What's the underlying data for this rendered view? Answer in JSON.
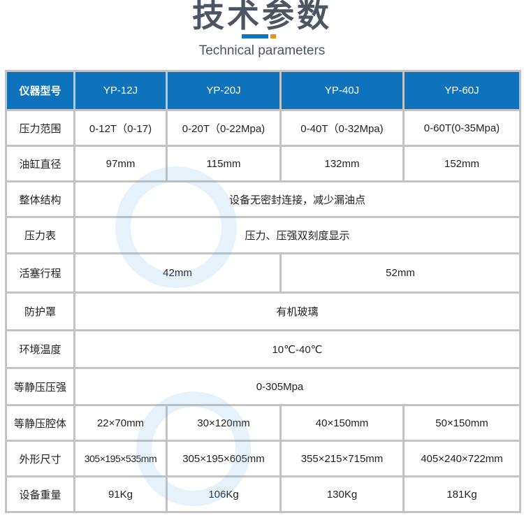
{
  "header": {
    "title": "技术参数",
    "subtitle": "Technical parameters",
    "accent_colors": {
      "blue": "#1272bd",
      "orange": "#f08a24"
    }
  },
  "table": {
    "header_color": "#0f72bd",
    "columns": [
      "仪器型号",
      "YP-12J",
      "YP-20J",
      "YP-40J",
      "YP-60J"
    ],
    "rows": {
      "pressure_range": {
        "label": "压力范围",
        "values": [
          "0-12T（0-17)",
          "0-20T（0-22Mpa)",
          "0-40T（0-32Mpa)",
          "0-60T(0-35Mpa)"
        ]
      },
      "cylinder_diameter": {
        "label": "油缸直径",
        "values": [
          "97mm",
          "115mm",
          "132mm",
          "152mm"
        ]
      },
      "structure": {
        "label": "整体结构",
        "value": "设备无密封连接，减少漏油点"
      },
      "gauge": {
        "label": "压力表",
        "value": "压力、压强双刻度显示"
      },
      "stroke": {
        "label": "活塞行程",
        "values": [
          "42mm",
          "52mm"
        ]
      },
      "cover": {
        "label": "防护罩",
        "value": "有机玻璃"
      },
      "temperature": {
        "label": "环境温度",
        "value": "10℃-40℃"
      },
      "iso_pressure": {
        "label": "等静压压强",
        "value": "0-305Mpa"
      },
      "iso_chamber": {
        "label": "等静压腔体",
        "values": [
          "22×70mm",
          "30×120mm",
          "40×150mm",
          "50×150mm"
        ]
      },
      "dimensions": {
        "label": "外形尺寸",
        "values": [
          "305×195×535mm",
          "305×195×605mm",
          "355×215×715mm",
          "405×240×722mm"
        ]
      },
      "weight": {
        "label": "设备重量",
        "values": [
          "91Kg",
          "106Kg",
          "130Kg",
          "181Kg"
        ]
      }
    }
  }
}
